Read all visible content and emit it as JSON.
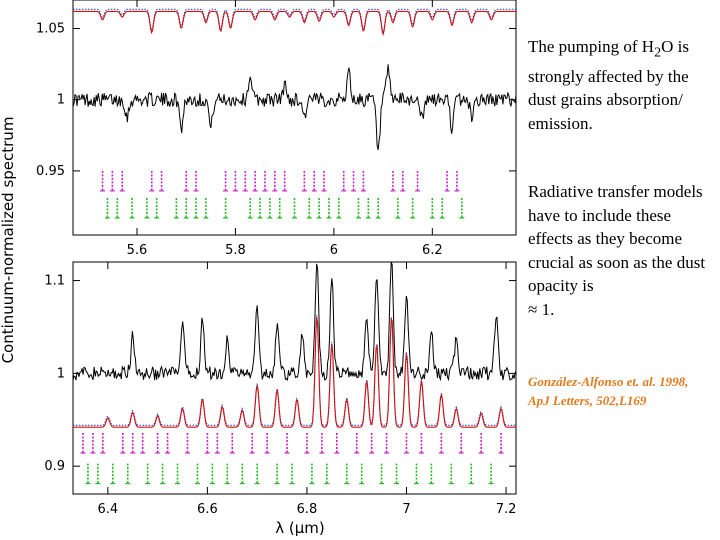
{
  "text": {
    "para1_before": "The pumping of ",
    "para1_h": "H",
    "para1_sub": "2",
    "para1_after": "O is strongly affected by the dust grains absorption/ emission.",
    "para2": "Radiative transfer models have to include these effects as they become crucial as soon as the dust opacity is",
    "para2_end": "≈ 1.",
    "citation": "González-Alfonso et. al. 1998, ApJ Letters, 502,L169"
  },
  "colors": {
    "observed": "#000000",
    "model_red": "#cc1111",
    "model_blue": "#3344cc",
    "label_magenta": "#cc22cc",
    "label_green": "#22bb22",
    "citation": "#e07a1f"
  },
  "chart_data": [
    {
      "type": "line",
      "ylabel": "Continuum-normalized spectrum",
      "xlim": [
        5.47,
        6.37
      ],
      "ylim": [
        0.905,
        1.07
      ],
      "x_ticks": [
        5.6,
        5.8,
        6,
        6.2
      ],
      "x_tick_labels": [
        "5.6",
        "5.8",
        "6",
        "6.2"
      ],
      "y_ticks": [
        0.95,
        1,
        1.05
      ],
      "y_tick_labels": [
        "0.95",
        "1",
        "1.05"
      ],
      "observed_baseline": 1.0,
      "model_baseline": 1.062,
      "absorption_lines": [
        {
          "x": 5.53,
          "depth": 0.006
        },
        {
          "x": 5.57,
          "depth": 0.004
        },
        {
          "x": 5.63,
          "depth": 0.015
        },
        {
          "x": 5.69,
          "depth": 0.012
        },
        {
          "x": 5.74,
          "depth": 0.008
        },
        {
          "x": 5.77,
          "depth": 0.014
        },
        {
          "x": 5.79,
          "depth": 0.012
        },
        {
          "x": 5.84,
          "depth": 0.006
        },
        {
          "x": 5.88,
          "depth": 0.006
        },
        {
          "x": 5.91,
          "depth": 0.004
        },
        {
          "x": 5.94,
          "depth": 0.008
        },
        {
          "x": 5.97,
          "depth": 0.007
        },
        {
          "x": 6.0,
          "depth": 0.004
        },
        {
          "x": 6.03,
          "depth": 0.01
        },
        {
          "x": 6.06,
          "depth": 0.014
        },
        {
          "x": 6.1,
          "depth": 0.016
        },
        {
          "x": 6.12,
          "depth": 0.008
        },
        {
          "x": 6.16,
          "depth": 0.011
        },
        {
          "x": 6.2,
          "depth": 0.006
        },
        {
          "x": 6.24,
          "depth": 0.01
        },
        {
          "x": 6.28,
          "depth": 0.008
        },
        {
          "x": 6.32,
          "depth": 0.006
        }
      ],
      "observed_features": [
        {
          "x": 5.58,
          "dy": -0.012
        },
        {
          "x": 5.69,
          "dy": -0.02
        },
        {
          "x": 5.75,
          "dy": -0.02
        },
        {
          "x": 5.83,
          "dy": 0.018
        },
        {
          "x": 5.9,
          "dy": 0.01
        },
        {
          "x": 5.94,
          "dy": -0.012
        },
        {
          "x": 6.03,
          "dy": 0.02
        },
        {
          "x": 6.09,
          "dy": -0.038
        },
        {
          "x": 6.11,
          "dy": 0.02
        },
        {
          "x": 6.18,
          "dy": -0.015
        },
        {
          "x": 6.24,
          "dy": -0.02
        },
        {
          "x": 6.28,
          "dy": -0.012
        }
      ],
      "label_rows": [
        {
          "color": "magenta",
          "y": 0.943,
          "xs": [
            5.53,
            5.55,
            5.57,
            5.63,
            5.65,
            5.7,
            5.72,
            5.78,
            5.8,
            5.82,
            5.84,
            5.86,
            5.88,
            5.9,
            5.94,
            5.96,
            5.98,
            6.02,
            6.04,
            6.06,
            6.12,
            6.14,
            6.17,
            6.23,
            6.25
          ]
        },
        {
          "color": "green",
          "y": 0.924,
          "xs": [
            5.54,
            5.56,
            5.59,
            5.62,
            5.64,
            5.68,
            5.7,
            5.72,
            5.74,
            5.78,
            5.83,
            5.85,
            5.87,
            5.89,
            5.92,
            5.95,
            5.97,
            5.99,
            6.01,
            6.05,
            6.07,
            6.09,
            6.13,
            6.16,
            6.2,
            6.22,
            6.26
          ]
        }
      ]
    },
    {
      "type": "line",
      "xlabel": "λ (μm)",
      "xlim": [
        6.33,
        7.22
      ],
      "ylim": [
        0.87,
        1.12
      ],
      "x_ticks": [
        6.4,
        6.6,
        6.8,
        7,
        7.2
      ],
      "x_tick_labels": [
        "6.4",
        "6.6",
        "6.8",
        "7",
        "7.2"
      ],
      "y_ticks": [
        0.9,
        1,
        1.1
      ],
      "y_tick_labels": [
        "0.9",
        "1",
        "1.1"
      ],
      "observed_baseline": 1.0,
      "model_baseline": 0.942,
      "emission_lines": [
        {
          "x": 6.4,
          "height": 0.01
        },
        {
          "x": 6.45,
          "height": 0.016
        },
        {
          "x": 6.5,
          "height": 0.012
        },
        {
          "x": 6.55,
          "height": 0.02
        },
        {
          "x": 6.59,
          "height": 0.03
        },
        {
          "x": 6.63,
          "height": 0.022
        },
        {
          "x": 6.67,
          "height": 0.018
        },
        {
          "x": 6.7,
          "height": 0.045
        },
        {
          "x": 6.74,
          "height": 0.04
        },
        {
          "x": 6.78,
          "height": 0.03
        },
        {
          "x": 6.82,
          "height": 0.12
        },
        {
          "x": 6.85,
          "height": 0.09
        },
        {
          "x": 6.88,
          "height": 0.03
        },
        {
          "x": 6.92,
          "height": 0.05
        },
        {
          "x": 6.94,
          "height": 0.09
        },
        {
          "x": 6.97,
          "height": 0.12
        },
        {
          "x": 7.0,
          "height": 0.08
        },
        {
          "x": 7.03,
          "height": 0.05
        },
        {
          "x": 7.07,
          "height": 0.035
        },
        {
          "x": 7.1,
          "height": 0.02
        },
        {
          "x": 7.15,
          "height": 0.015
        },
        {
          "x": 7.19,
          "height": 0.02
        }
      ],
      "observed_features": [
        {
          "x": 6.45,
          "dy": 0.04
        },
        {
          "x": 6.55,
          "dy": 0.05
        },
        {
          "x": 6.59,
          "dy": 0.06
        },
        {
          "x": 6.64,
          "dy": 0.04
        },
        {
          "x": 6.7,
          "dy": 0.07
        },
        {
          "x": 6.74,
          "dy": 0.05
        },
        {
          "x": 6.79,
          "dy": 0.04
        },
        {
          "x": 6.82,
          "dy": 0.12
        },
        {
          "x": 6.85,
          "dy": 0.1
        },
        {
          "x": 6.92,
          "dy": 0.06
        },
        {
          "x": 6.94,
          "dy": 0.11
        },
        {
          "x": 6.97,
          "dy": 0.12
        },
        {
          "x": 7.0,
          "dy": 0.08
        },
        {
          "x": 7.05,
          "dy": 0.05
        },
        {
          "x": 7.1,
          "dy": 0.04
        },
        {
          "x": 7.18,
          "dy": 0.06
        }
      ],
      "label_rows": [
        {
          "color": "magenta",
          "y": 0.925,
          "xs": [
            6.35,
            6.37,
            6.39,
            6.43,
            6.45,
            6.47,
            6.5,
            6.52,
            6.56,
            6.6,
            6.62,
            6.65,
            6.69,
            6.72,
            6.76,
            6.8,
            6.83,
            6.86,
            6.9,
            6.93,
            6.96,
            7.0,
            7.03,
            7.07,
            7.11,
            7.15,
            7.19
          ]
        },
        {
          "color": "green",
          "y": 0.892,
          "xs": [
            6.36,
            6.38,
            6.41,
            6.44,
            6.48,
            6.51,
            6.54,
            6.58,
            6.61,
            6.64,
            6.67,
            6.7,
            6.74,
            6.77,
            6.81,
            6.84,
            6.88,
            6.91,
            6.95,
            6.98,
            7.02,
            7.05,
            7.09,
            7.13,
            7.17
          ]
        }
      ]
    }
  ]
}
